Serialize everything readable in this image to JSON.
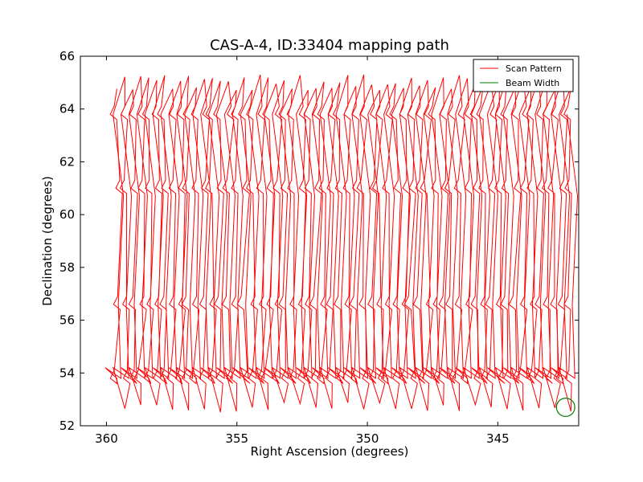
{
  "chart_data": {
    "type": "line",
    "title": "CAS-A-4, ID:33404 mapping path",
    "xlabel": "Right Ascension (degrees)",
    "ylabel": "Declination (degrees)",
    "xlim": [
      361,
      341.9
    ],
    "ylim": [
      52,
      66
    ],
    "x_inverted": true,
    "x_ticks": [
      360,
      355,
      350,
      345
    ],
    "y_ticks": [
      52,
      54,
      56,
      58,
      60,
      62,
      64,
      66
    ],
    "grid": false,
    "legend": {
      "position": "top-right"
    },
    "scan": {
      "ra_start": 359.6,
      "ra_end": 342.2,
      "sweeps": 58,
      "dec_high": 65.3,
      "dec_low": 53.8,
      "dec_low_alt": 52.5,
      "fold_decs": [
        63.8,
        61.0,
        56.6,
        53.8
      ]
    },
    "series": [
      {
        "name": "Scan Pattern",
        "color": "#ff0000"
      },
      {
        "name": "Beam Width",
        "color": "#008000"
      }
    ],
    "beam": {
      "ra": 342.4,
      "dec": 52.7,
      "radius_deg": 0.35
    }
  }
}
